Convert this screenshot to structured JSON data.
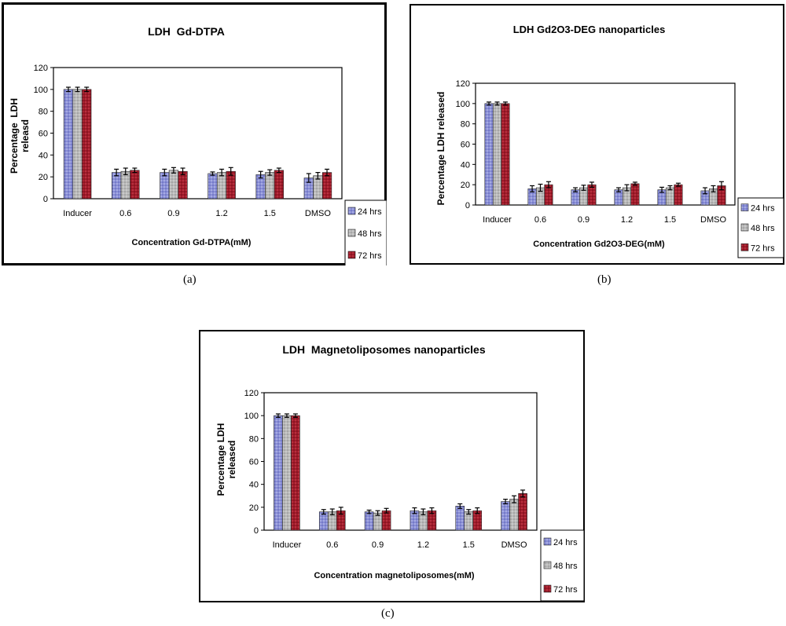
{
  "colors": {
    "s24": "#8a8fd6",
    "s48": "#b9b9b9",
    "s72": "#a11b2a",
    "frame": "#000000"
  },
  "captions": {
    "a": "(a)",
    "b": "(b)",
    "c": "(c)"
  },
  "chart_data": [
    {
      "type": "bar",
      "title": "LDH  Gd-DTPA",
      "xlabel": "Concentration Gd-DTPA(mM)",
      "ylabel": [
        "Percentage  LDH",
        "releasd"
      ],
      "ylim": [
        0,
        120
      ],
      "yticks": [
        0,
        20,
        40,
        60,
        80,
        100,
        120
      ],
      "grid": false,
      "legend": "right",
      "categories": [
        "Inducer",
        "0.6",
        "0.9",
        "1.2",
        "1.5",
        "DMSO"
      ],
      "series": [
        {
          "name": "24 hrs",
          "values": [
            100,
            24,
            24,
            23,
            22,
            19
          ],
          "errors": [
            2,
            3,
            3,
            1.5,
            3,
            4
          ]
        },
        {
          "name": "48 hrs",
          "values": [
            100,
            25,
            26,
            24,
            24,
            21
          ],
          "errors": [
            2,
            3,
            2.5,
            3,
            2.5,
            3
          ]
        },
        {
          "name": "72 hrs",
          "values": [
            100,
            26,
            25,
            25,
            26,
            24
          ],
          "errors": [
            2,
            2,
            3,
            3.5,
            2,
            3
          ]
        }
      ]
    },
    {
      "type": "bar",
      "title": "LDH Gd2O3-DEG nanoparticles",
      "xlabel": "Concentration Gd2O3-DEG(mM)",
      "ylabel": [
        "Percentage LDH released"
      ],
      "ylim": [
        0,
        120
      ],
      "yticks": [
        0,
        20,
        40,
        60,
        80,
        100,
        120
      ],
      "grid": false,
      "legend": "right",
      "categories": [
        "Inducer",
        "0.6",
        "0.9",
        "1.2",
        "1.5",
        "DMSO"
      ],
      "series": [
        {
          "name": "24 hrs",
          "values": [
            100,
            16,
            15,
            15,
            15,
            14
          ],
          "errors": [
            1.5,
            3,
            2,
            2,
            2.5,
            3
          ]
        },
        {
          "name": "48 hrs",
          "values": [
            100,
            17,
            17,
            17,
            17,
            16
          ],
          "errors": [
            1.5,
            3.5,
            2.5,
            3,
            2,
            3
          ]
        },
        {
          "name": "72 hrs",
          "values": [
            100,
            20,
            20,
            21,
            20,
            19
          ],
          "errors": [
            1.5,
            3,
            2.5,
            1.5,
            1.5,
            4
          ]
        }
      ]
    },
    {
      "type": "bar",
      "title": "LDH  Magnetoliposomes nanoparticles",
      "xlabel": "Concentration magnetoliposomes(mM)",
      "ylabel": [
        "Percentage LDH",
        "released"
      ],
      "ylim": [
        0,
        120
      ],
      "yticks": [
        0,
        20,
        40,
        60,
        80,
        100,
        120
      ],
      "grid": false,
      "legend": "right",
      "categories": [
        "Inducer",
        "0.6",
        "0.9",
        "1.2",
        "1.5",
        "DMSO"
      ],
      "series": [
        {
          "name": "24 hrs",
          "values": [
            100,
            16,
            16,
            17,
            21,
            25
          ],
          "errors": [
            1.5,
            2,
            1.5,
            2.5,
            2,
            2
          ]
        },
        {
          "name": "48 hrs",
          "values": [
            100,
            16,
            15,
            16,
            16,
            27
          ],
          "errors": [
            1.5,
            2.5,
            2,
            2.5,
            2,
            3
          ]
        },
        {
          "name": "72 hrs",
          "values": [
            100,
            17,
            17,
            17,
            17,
            32
          ],
          "errors": [
            1.5,
            3,
            2,
            2.5,
            2.5,
            3
          ]
        }
      ]
    }
  ]
}
